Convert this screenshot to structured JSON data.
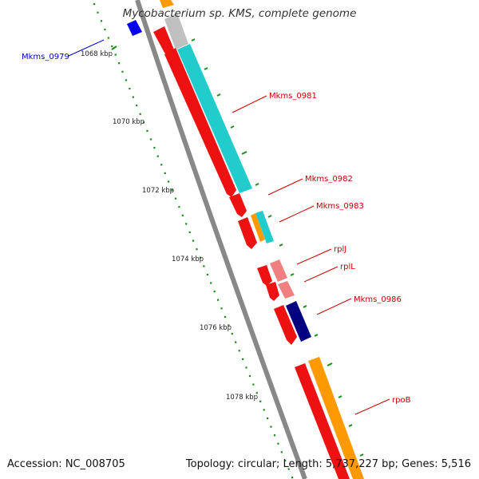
{
  "title": "Mycobacterium sp. KMS, complete genome",
  "footer": {
    "accession": "Accession: NC_008705",
    "stats": "Topology: circular; Length: 5,737,227 bp; Genes: 5,516"
  },
  "colors": {
    "backbone": "#888888",
    "tick": "#1a8c1a",
    "forward_label": "#cc0000",
    "reverse_label": "#0000cc",
    "cds_red": "#ee1111",
    "light_red": "#f08080",
    "cyan": "#22cccc",
    "orange": "#ff9900",
    "navy": "#000080",
    "blue": "#0000ee",
    "grey": "#c0c0c0"
  },
  "tick_labels": [
    "1068 kbp",
    "1070 kbp",
    "1072 kbp",
    "1074 kbp",
    "1076 kbp",
    "1078 kbp"
  ],
  "gene_labels": [
    {
      "name": "Mkms_0979",
      "color": "reverse"
    },
    {
      "name": "Mkms_0981",
      "color": "forward"
    },
    {
      "name": "Mkms_0982",
      "color": "forward"
    },
    {
      "name": "Mkms_0983",
      "color": "forward"
    },
    {
      "name": "rplJ",
      "color": "forward"
    },
    {
      "name": "rplL",
      "color": "forward"
    },
    {
      "name": "Mkms_0986",
      "color": "forward"
    },
    {
      "name": "rpoB",
      "color": "forward"
    }
  ]
}
